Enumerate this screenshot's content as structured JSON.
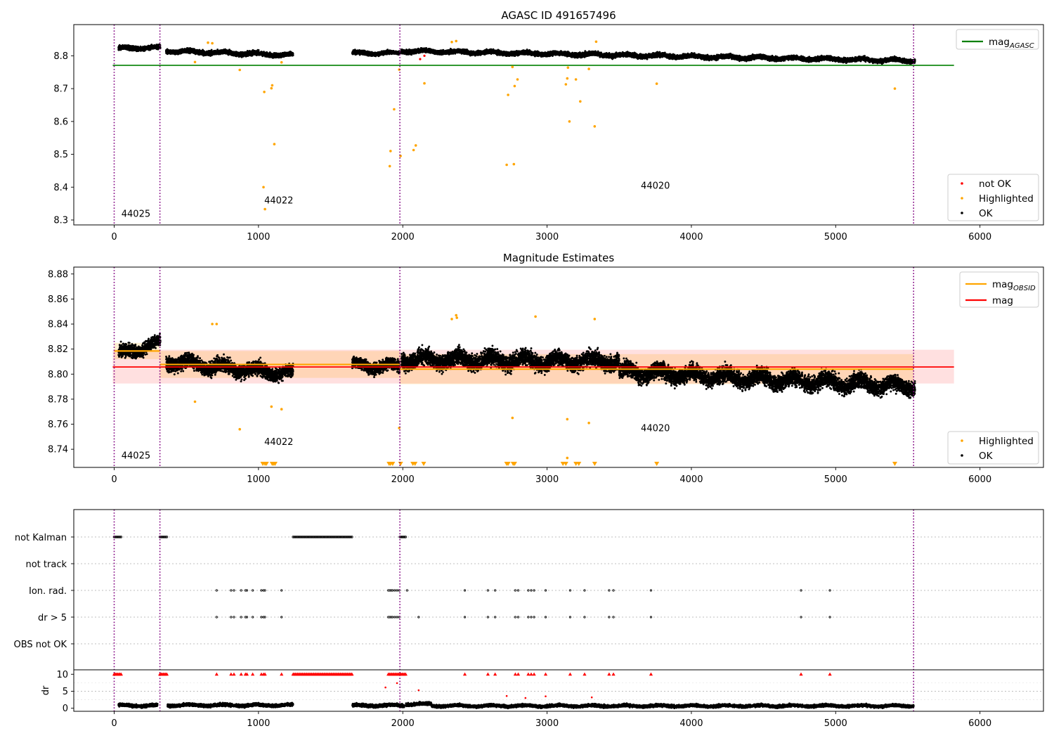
{
  "chart_data": [
    {
      "type": "scatter",
      "title": "AGASC ID 491657496",
      "xlim": [
        -280,
        6440
      ],
      "ylim": [
        8.285,
        8.895
      ],
      "x_ticks": [
        0,
        1000,
        2000,
        3000,
        4000,
        5000,
        6000
      ],
      "y_ticks": [
        8.3,
        8.4,
        8.5,
        8.6,
        8.7,
        8.8
      ],
      "y_tick_labels": [
        "8.3",
        "8.4",
        "8.5",
        "8.6",
        "8.7",
        "8.8"
      ],
      "legend_lines": [
        {
          "label": "mag",
          "subscript": "AGASC",
          "color": "#008000"
        }
      ],
      "legend_points": [
        {
          "label": "not OK",
          "color": "#ff0000"
        },
        {
          "label": "Highlighted",
          "color": "#ffa500"
        },
        {
          "label": "OK",
          "color": "#000000"
        }
      ],
      "legend_placement": [
        "top-right",
        "bottom-right"
      ],
      "reference_lines": [
        {
          "name": "mag_AGASC",
          "y": 8.771,
          "x_range": [
            -10,
            5820
          ],
          "color": "#008000"
        }
      ],
      "obsid_boundaries": [
        0,
        317,
        1980,
        5540
      ],
      "obsid_labels": [
        {
          "text": "44025",
          "x": 50,
          "y": 8.31
        },
        {
          "text": "44022",
          "x": 1040,
          "y": 8.35
        },
        {
          "text": "44020",
          "x": 3650,
          "y": 8.395
        }
      ],
      "ok_segments": [
        {
          "x": [
            30,
            320
          ],
          "y_start": 8.822,
          "y_end": 8.825,
          "spread": 0.009
        },
        {
          "x": [
            360,
            1240
          ],
          "y_start": 8.815,
          "y_end": 8.802,
          "spread": 0.009
        },
        {
          "x": [
            1650,
            1980
          ],
          "y_start": 8.808,
          "y_end": 8.808,
          "spread": 0.008
        },
        {
          "x": [
            1990,
            5550
          ],
          "y_start": 8.815,
          "y_end": 8.785,
          "spread": 0.009
        }
      ],
      "highlighted_points": [
        [
          560,
          8.781
        ],
        [
          650,
          8.84
        ],
        [
          680,
          8.838
        ],
        [
          870,
          8.757
        ],
        [
          1035,
          8.4
        ],
        [
          1040,
          8.69
        ],
        [
          1045,
          8.333
        ],
        [
          1090,
          8.701
        ],
        [
          1095,
          8.71
        ],
        [
          1110,
          8.531
        ],
        [
          1160,
          8.78
        ],
        [
          1910,
          8.464
        ],
        [
          1915,
          8.51
        ],
        [
          1940,
          8.637
        ],
        [
          1975,
          8.758
        ],
        [
          1985,
          8.495
        ],
        [
          2075,
          8.513
        ],
        [
          2090,
          8.527
        ],
        [
          2150,
          8.716
        ],
        [
          2340,
          8.842
        ],
        [
          2370,
          8.845
        ],
        [
          2720,
          8.468
        ],
        [
          2730,
          8.681
        ],
        [
          2760,
          8.766
        ],
        [
          2770,
          8.47
        ],
        [
          2775,
          8.708
        ],
        [
          2795,
          8.728
        ],
        [
          3130,
          8.713
        ],
        [
          3140,
          8.731
        ],
        [
          3145,
          8.764
        ],
        [
          3155,
          8.6
        ],
        [
          3200,
          8.728
        ],
        [
          3230,
          8.661
        ],
        [
          3290,
          8.76
        ],
        [
          3330,
          8.585
        ],
        [
          3340,
          8.843
        ],
        [
          3760,
          8.715
        ],
        [
          5410,
          8.7
        ]
      ],
      "notok_points": [
        [
          2120,
          8.79
        ],
        [
          2150,
          8.8
        ]
      ]
    },
    {
      "type": "scatter",
      "title": "Magnitude Estimates",
      "xlim": [
        -280,
        6440
      ],
      "ylim": [
        8.7255,
        8.8855
      ],
      "x_ticks": [
        0,
        1000,
        2000,
        3000,
        4000,
        5000,
        6000
      ],
      "y_ticks": [
        8.74,
        8.76,
        8.78,
        8.8,
        8.82,
        8.84,
        8.86,
        8.88
      ],
      "y_tick_labels": [
        "8.74",
        "8.76",
        "8.78",
        "8.80",
        "8.82",
        "8.84",
        "8.86",
        "8.88"
      ],
      "legend_lines": [
        {
          "label": "mag",
          "subscript": "OBSID",
          "color": "#ffa500"
        },
        {
          "label": "mag",
          "subscript": "",
          "color": "#ff0000"
        }
      ],
      "legend_points": [
        {
          "label": "Highlighted",
          "color": "#ffa500"
        },
        {
          "label": "OK",
          "color": "#000000"
        }
      ],
      "legend_placement": [
        "top-right",
        "bottom-right"
      ],
      "overall_mag": {
        "y": 8.8057,
        "band": [
          8.7925,
          8.8195
        ],
        "x_range": [
          -10,
          5820
        ]
      },
      "obsid_mags": [
        {
          "x": [
            0,
            317
          ],
          "y": 8.8185,
          "band": [
            8.812,
            8.825
          ]
        },
        {
          "x": [
            317,
            1980
          ],
          "y": 8.8077,
          "band": [
            8.797,
            8.8185
          ]
        },
        {
          "x": [
            1980,
            5540
          ],
          "y": 8.804,
          "band": [
            8.792,
            8.816
          ]
        }
      ],
      "obsid_boundaries": [
        0,
        317,
        1980,
        5540
      ],
      "obsid_labels": [
        {
          "text": "44025",
          "x": 50,
          "y": 8.7325
        },
        {
          "text": "44022",
          "x": 1040,
          "y": 8.7435
        },
        {
          "text": "44020",
          "x": 3650,
          "y": 8.7545
        }
      ],
      "ok_segments": [
        {
          "x": [
            30,
            320
          ],
          "y_start": 8.816,
          "y_end": 8.825,
          "spread": 0.007
        },
        {
          "x": [
            360,
            1240
          ],
          "y_start": 8.81,
          "y_end": 8.8,
          "spread": 0.008
        },
        {
          "x": [
            1650,
            1980
          ],
          "y_start": 8.807,
          "y_end": 8.806,
          "spread": 0.007
        },
        {
          "x": [
            1990,
            3500
          ],
          "y_start": 8.812,
          "y_end": 8.81,
          "spread": 0.009
        },
        {
          "x": [
            3500,
            5550
          ],
          "y_start": 8.802,
          "y_end": 8.79,
          "spread": 0.009
        }
      ],
      "highlighted_points": [
        [
          560,
          8.778
        ],
        [
          680,
          8.84
        ],
        [
          710,
          8.84
        ],
        [
          870,
          8.756
        ],
        [
          1090,
          8.774
        ],
        [
          1160,
          8.772
        ],
        [
          1975,
          8.757
        ],
        [
          2340,
          8.844
        ],
        [
          2370,
          8.847
        ],
        [
          2375,
          8.845
        ],
        [
          2760,
          8.765
        ],
        [
          2920,
          8.846
        ],
        [
          3140,
          8.764
        ],
        [
          3290,
          8.761
        ],
        [
          3330,
          8.844
        ],
        [
          3140,
          8.733
        ]
      ],
      "out_of_range_markers": [
        1030,
        1045,
        1055,
        1095,
        1105,
        1115,
        1905,
        1915,
        1930,
        1985,
        2070,
        2085,
        2145,
        2720,
        2730,
        2765,
        2775,
        3110,
        3130,
        3200,
        3220,
        3330,
        3760,
        5410
      ]
    },
    {
      "type": "scatter",
      "title": "",
      "xlim": [
        -280,
        6440
      ],
      "flag_rows": [
        "not Kalman",
        "not track",
        "Ion. rad.",
        "dr > 5",
        "OBS not OK"
      ],
      "flag_intervals": [
        {
          "row": "not Kalman",
          "x": [
            0,
            50
          ]
        },
        {
          "row": "not Kalman",
          "x": [
            317,
            370
          ]
        },
        {
          "row": "not Kalman",
          "x": [
            1240,
            1650
          ]
        },
        {
          "row": "not Kalman",
          "x": [
            1980,
            2020
          ]
        }
      ],
      "flag_points": [
        {
          "row": "Ion. rad.",
          "x": [
            710,
            810,
            830,
            880,
            910,
            920,
            960,
            1020,
            1035,
            1045,
            1160,
            1900,
            1910,
            1920,
            1930,
            1945,
            1960,
            1975,
            2030,
            2430,
            2590,
            2640,
            2780,
            2800,
            2870,
            2890,
            2910,
            2990,
            3160,
            3260,
            3430,
            3460,
            3720,
            4760,
            4960
          ]
        },
        {
          "row": "dr > 5",
          "x": [
            710,
            810,
            830,
            880,
            910,
            920,
            960,
            1020,
            1035,
            1045,
            1160,
            1900,
            1910,
            1920,
            1930,
            1945,
            1960,
            1975,
            2110,
            2430,
            2590,
            2640,
            2780,
            2800,
            2870,
            2890,
            2910,
            2990,
            3160,
            3260,
            3430,
            3460,
            3720,
            4760,
            4960
          ]
        }
      ],
      "obsid_boundaries": [
        0,
        317,
        1980,
        5540
      ]
    },
    {
      "type": "scatter",
      "ylabel": "dr",
      "xlim": [
        -280,
        6440
      ],
      "ylim": [
        -0.9,
        11.3
      ],
      "x_ticks": [
        0,
        1000,
        2000,
        3000,
        4000,
        5000,
        6000
      ],
      "y_ticks": [
        0,
        5,
        10
      ],
      "y_tick_labels": [
        "0",
        "5",
        "10"
      ],
      "clipped_value": 10,
      "clipped_markers": {
        "x_ranges": [
          [
            0,
            50
          ],
          [
            317,
            370
          ],
          [
            1240,
            1650
          ],
          [
            1900,
            2020
          ]
        ],
        "x_points": [
          710,
          810,
          830,
          880,
          910,
          920,
          960,
          1020,
          1035,
          1045,
          1160,
          2430,
          2590,
          2640,
          2780,
          2800,
          2870,
          2890,
          2910,
          2990,
          3160,
          3260,
          3430,
          3460,
          3720,
          4760,
          4960
        ]
      },
      "notok_points": [
        [
          1880,
          6.1
        ],
        [
          1960,
          7.4
        ],
        [
          2110,
          5.3
        ],
        [
          2720,
          3.6
        ],
        [
          2850,
          3.0
        ],
        [
          2990,
          3.5
        ],
        [
          3310,
          3.2
        ]
      ],
      "ok_segments": [
        {
          "x": [
            30,
            300
          ],
          "y": 0.8,
          "spread": 0.6
        },
        {
          "x": [
            370,
            1240
          ],
          "y": 0.9,
          "spread": 0.6
        },
        {
          "x": [
            1650,
            2010
          ],
          "y": 0.8,
          "spread": 0.6
        },
        {
          "x": [
            2020,
            2200
          ],
          "y": 1.2,
          "spread": 0.6
        },
        {
          "x": [
            2200,
            5540
          ],
          "y": 0.7,
          "spread": 0.55
        }
      ],
      "obsid_boundaries": [
        0,
        317,
        1980,
        5540
      ]
    }
  ]
}
